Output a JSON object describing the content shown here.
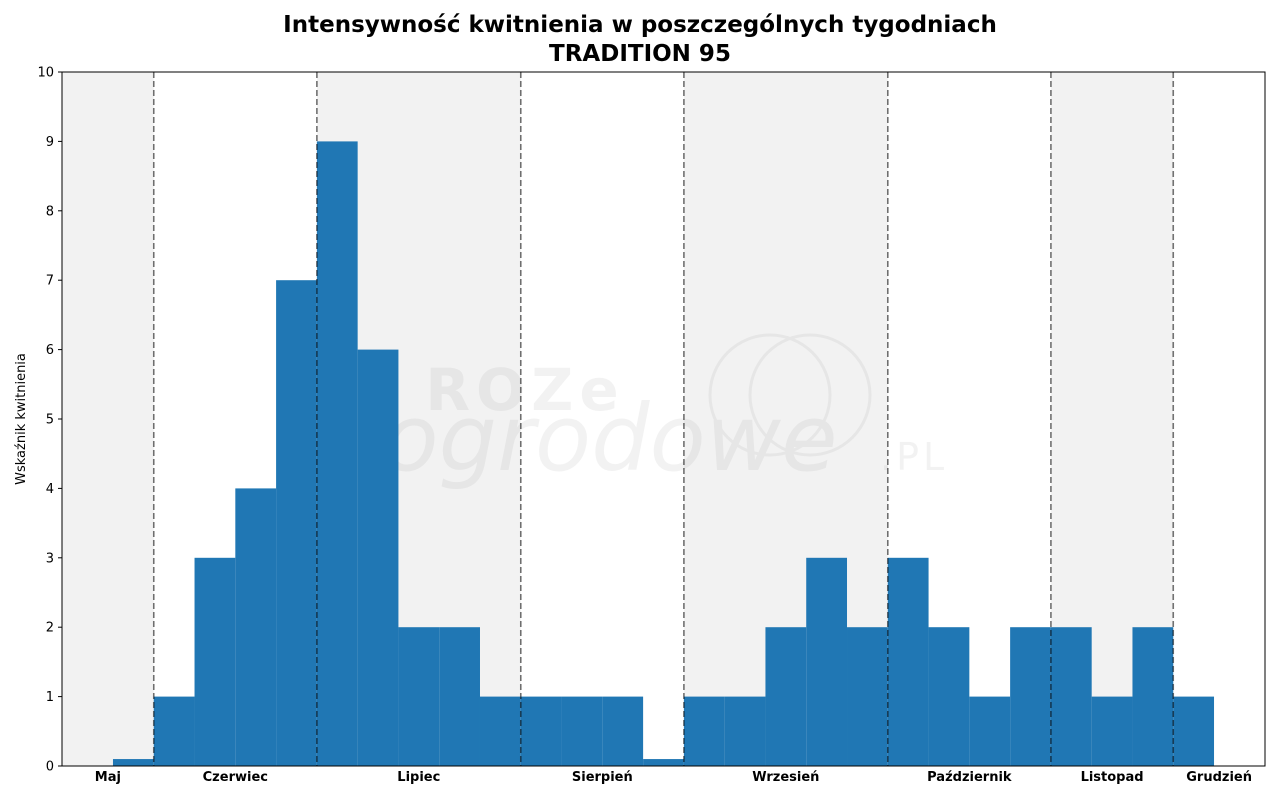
{
  "chart_data": {
    "type": "bar",
    "title": "Intensywność kwitnienia w poszczególnych tygodniach",
    "subtitle": "TRADITION 95",
    "xlabel": "",
    "ylabel": "Wskaźnik kwitnienia",
    "ylim": [
      0,
      10
    ],
    "yticks": [
      0,
      1,
      2,
      3,
      4,
      5,
      6,
      7,
      8,
      9,
      10
    ],
    "grid": false,
    "legend": "none",
    "bar_color": "#2077b4",
    "shade_color": "#f2f2f2",
    "week_start": 0,
    "week_end": 29.5,
    "values": [
      0.1,
      1,
      3,
      4,
      7,
      9,
      6,
      2,
      2,
      1,
      1,
      1,
      1,
      0.1,
      1,
      1,
      2,
      3,
      2,
      3,
      2,
      1,
      2,
      2,
      1,
      2,
      1
    ],
    "first_bar_week": 1.25,
    "months": [
      {
        "name": "Maj",
        "start": 0,
        "end": 2.25,
        "shaded": true
      },
      {
        "name": "Czerwiec",
        "start": 2.25,
        "end": 6.25,
        "shaded": false
      },
      {
        "name": "Lipiec",
        "start": 6.25,
        "end": 11.25,
        "shaded": true
      },
      {
        "name": "Sierpień",
        "start": 11.25,
        "end": 15.25,
        "shaded": false
      },
      {
        "name": "Wrzesień",
        "start": 15.25,
        "end": 20.25,
        "shaded": true
      },
      {
        "name": "Październik",
        "start": 20.25,
        "end": 24.25,
        "shaded": false
      },
      {
        "name": "Listopad",
        "start": 24.25,
        "end": 27.25,
        "shaded": true
      },
      {
        "name": "Grudzień",
        "start": 27.25,
        "end": 29.5,
        "shaded": false
      }
    ]
  },
  "watermark": {
    "line1": "ROZe",
    "line2": "ogrodowe",
    "suffix": ".PL"
  }
}
